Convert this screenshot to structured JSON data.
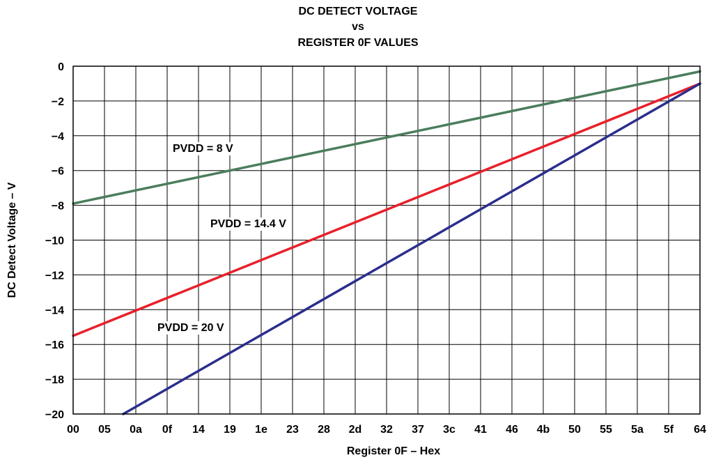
{
  "chart_data": {
    "type": "line",
    "title": [
      "DC DETECT VOLTAGE",
      "vs",
      "REGISTER 0F VALUES"
    ],
    "xlabel": "Register 0F – Hex",
    "ylabel": "DC Detect Voltage – V",
    "x_tick_labels": [
      "00",
      "05",
      "0a",
      "0f",
      "14",
      "19",
      "1e",
      "23",
      "28",
      "2d",
      "32",
      "37",
      "3c",
      "41",
      "46",
      "4b",
      "50",
      "55",
      "5a",
      "5f",
      "64"
    ],
    "x_ticks_decimal": [
      0,
      5,
      10,
      15,
      20,
      25,
      30,
      35,
      40,
      45,
      50,
      55,
      60,
      65,
      70,
      75,
      80,
      85,
      90,
      95,
      100
    ],
    "y_ticks": [
      0,
      -2,
      -4,
      -6,
      -8,
      -10,
      -12,
      -14,
      -16,
      -18,
      -20
    ],
    "y_tick_labels": [
      "0",
      "−2",
      "−4",
      "−6",
      "−8",
      "−10",
      "−12",
      "−14",
      "−16",
      "−18",
      "−20"
    ],
    "xlim": [
      0,
      100
    ],
    "ylim": [
      -20,
      0
    ],
    "grid": true,
    "series": [
      {
        "name": "PVDD = 8 V",
        "color": "#4a7d5c",
        "x": [
          0,
          100
        ],
        "y": [
          -7.9,
          -0.3
        ]
      },
      {
        "name": "PVDD = 14.4 V",
        "color": "#e8202a",
        "x": [
          0,
          100
        ],
        "y": [
          -15.5,
          -1.0
        ]
      },
      {
        "name": "PVDD = 20 V",
        "color": "#2a2e8c",
        "x": [
          8,
          100
        ],
        "y": [
          -20.0,
          -1.0
        ]
      }
    ]
  }
}
